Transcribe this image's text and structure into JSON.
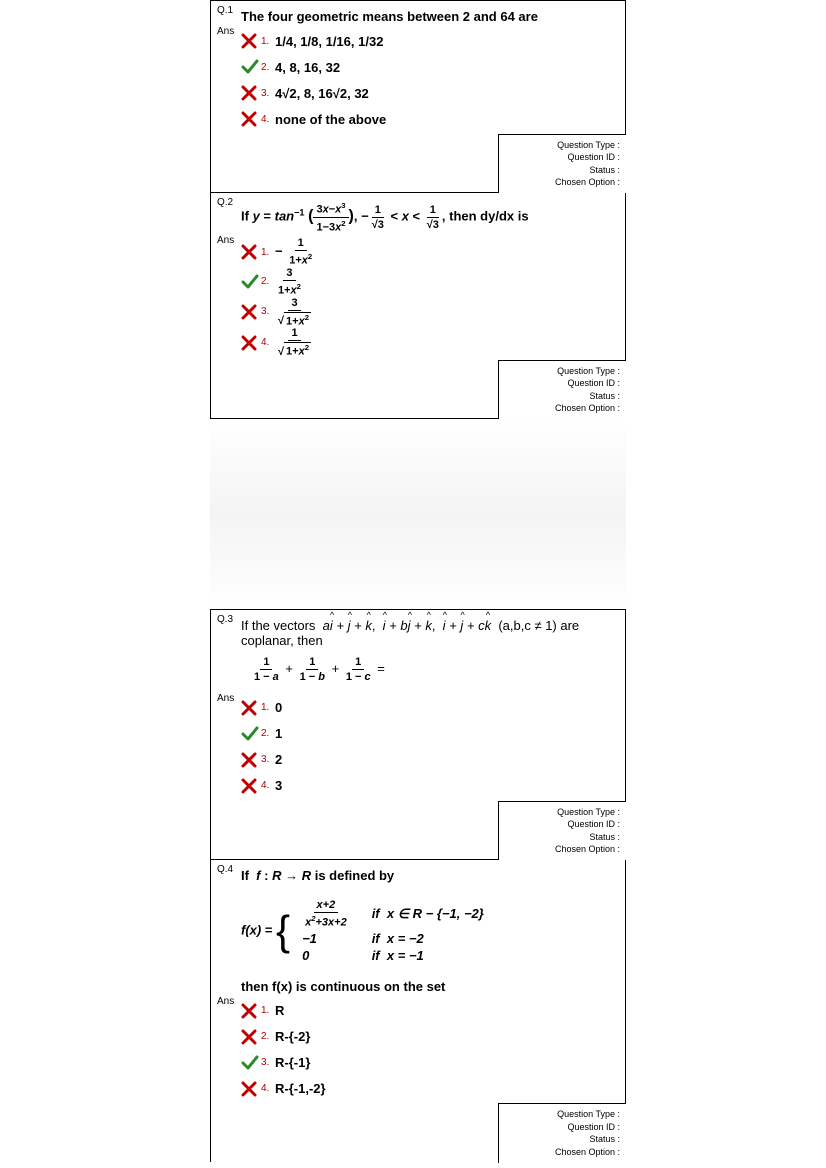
{
  "meta_labels": {
    "type": "Question Type :",
    "id": "Question ID :",
    "status": "Status :",
    "chosen": "Chosen Option :"
  },
  "ans_label": "Ans",
  "questions": [
    {
      "num": "Q.1",
      "text_html": "The four geometric means between 2 and 64 are",
      "options": [
        {
          "correct": false,
          "n": "1.",
          "html": "1/4, 1/8, 1/16, 1/32"
        },
        {
          "correct": true,
          "n": "2.",
          "html": "4, 8, 16, 32"
        },
        {
          "correct": false,
          "n": "3.",
          "html": "4√2, 8, 16√2, 32"
        },
        {
          "correct": false,
          "n": "4.",
          "html": "none of the above"
        }
      ]
    },
    {
      "num": "Q.2",
      "text_html": "If <i>y</i> = <i>tan</i><sup>&minus;1</sup> <span style='font-size:16px'>(</span><span class='vfrac'><span class='n'>3<i>x</i>&minus;<i>x</i><sup>3</sup></span><span class='d'>1&minus;3<i>x</i><sup>2</sup></span></span><span style='font-size:16px'>)</span>, &minus;<span class='vfrac'><span class='n'>1</span><span class='d'>&radic;3</span></span> &lt; <i>x</i> &lt; <span class='vfrac'><span class='n'>1</span><span class='d'>&radic;3</span></span>, then dy/dx is",
      "options": [
        {
          "correct": false,
          "n": "1.",
          "html": "&minus; <span class='vfrac'><span class='n'>1</span><span class='d'>1+<i>x</i><sup>2</sup></span></span>"
        },
        {
          "correct": true,
          "n": "2.",
          "html": "<span class='vfrac'><span class='n'>3</span><span class='d'>1+<i>x</i><sup>2</sup></span></span>"
        },
        {
          "correct": false,
          "n": "3.",
          "html": "<span class='vfrac'><span class='n'>3</span><span class='d'><span class='sqrt'><span class='rad'>1+<i>x</i><sup>2</sup></span></span></span></span>"
        },
        {
          "correct": false,
          "n": "4.",
          "html": "<span class='vfrac'><span class='n'>1</span><span class='d'><span class='sqrt'><span class='rad'>1+<i>x</i><sup>2</sup></span></span></span></span>"
        }
      ]
    },
    {
      "num": "Q.3",
      "text_html": "If the vectors&nbsp; <i>a<span class='hat'>i</span> + <span class='hat'>j</span> + <span class='hat'>k</span></i>,&nbsp; <i><span class='hat'>i</span> + b<span class='hat'>j</span> + <span class='hat'>k</span></i>,&nbsp; <i><span class='hat'>i</span> + <span class='hat'>j</span> + c<span class='hat'>k</span></i>&nbsp; (a,b,c &ne; 1) are coplanar, then<div class='eq'><span class='vfrac'><span class='n'><b>1</b></span><span class='d'><b>1 &minus; <i>a</i></b></span></span> + <span class='vfrac'><span class='n'><b>1</b></span><span class='d'><b>1 &minus; <i>b</i></b></span></span> + <span class='vfrac'><span class='n'><b>1</b></span><span class='d'><b>1 &minus; <i>c</i></b></span></span> =</div>",
      "text_bold": false,
      "options": [
        {
          "correct": false,
          "n": "1.",
          "html": "0"
        },
        {
          "correct": true,
          "n": "2.",
          "html": "1"
        },
        {
          "correct": false,
          "n": "3.",
          "html": "2"
        },
        {
          "correct": false,
          "n": "4.",
          "html": "3"
        }
      ]
    },
    {
      "num": "Q.4",
      "text_html": "If &nbsp;<span class='bold-it'>f</span> : <span class='bold-it'>R</span> &rarr; <span class='bold-it'>R</span> is defined by<div class='eq' style='margin:14px 0 14px 0'><span class='bold-it'>f(x)</span> = <span class='brace'>{</span><table class='piecewise' style='display:inline-table;vertical-align:middle'><tr><td><span class='vfrac'><span class='n'>x+2</span><span class='d'>x<sup>2</sup>+3x+2</span></span></td><td>if&nbsp; x &isin; R &minus; {&minus;1, &minus;2}</td></tr><tr><td>&minus;1</td><td>if&nbsp; x = &minus;2</td></tr><tr><td>0</td><td>if&nbsp; x = &minus;1</td></tr></table></div>then f(x) is continuous on the set",
      "options": [
        {
          "correct": false,
          "n": "1.",
          "html": "R"
        },
        {
          "correct": false,
          "n": "2.",
          "html": "R-{-2}"
        },
        {
          "correct": true,
          "n": "3.",
          "html": "R-{-1}"
        },
        {
          "correct": false,
          "n": "4.",
          "html": "R-{-1,-2}"
        }
      ],
      "no_bottom": true
    }
  ],
  "gap_after": [
    false,
    true,
    false,
    false
  ]
}
